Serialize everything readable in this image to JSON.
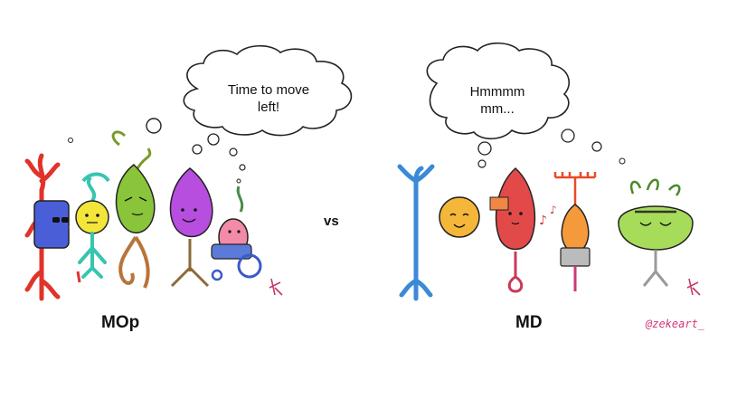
{
  "left": {
    "thought": "Time to move\nleft!",
    "caption": "MOp"
  },
  "right": {
    "thought": "Hmmmm\nmm...",
    "caption": "MD"
  },
  "vs_label": "vs",
  "credit": "@zekeart_",
  "colors": {
    "handle": "#d6337a",
    "signature": "#c8346e",
    "text": "#111111"
  }
}
